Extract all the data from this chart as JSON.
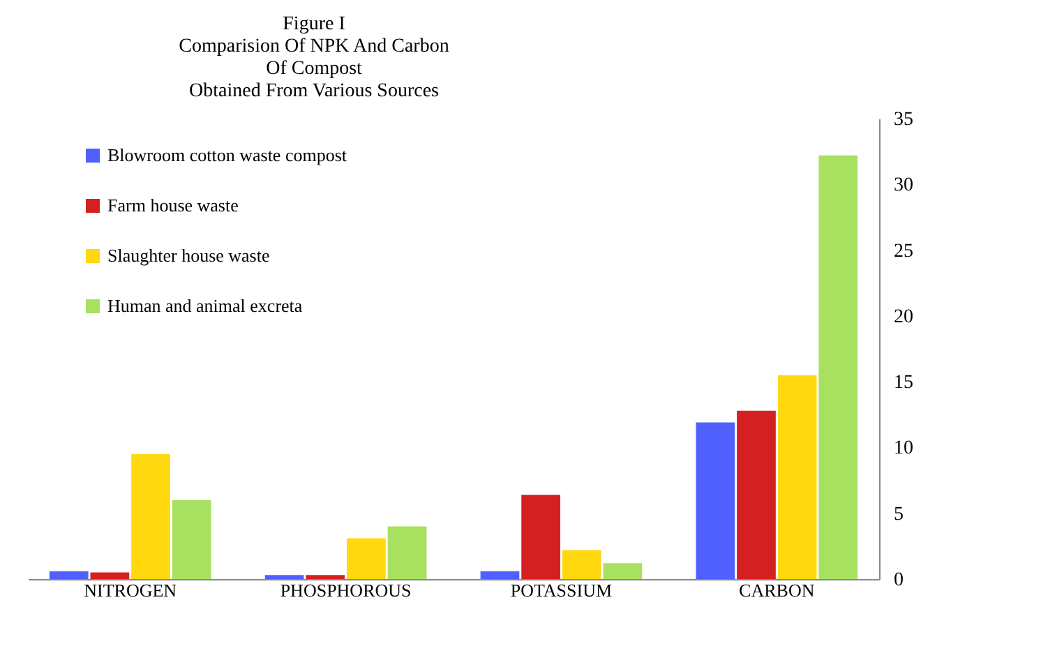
{
  "chart_data": {
    "type": "bar",
    "title": [
      "Figure I",
      "Comparision Of NPK And Carbon",
      "Of Compost",
      "Obtained From Various Sources"
    ],
    "categories": [
      "NITROGEN",
      "PHOSPHOROUS",
      "POTASSIUM",
      "CARBON"
    ],
    "series": [
      {
        "name": "Blowroom cotton waste compost",
        "color": "#5060ff",
        "values": [
          0.6,
          0.3,
          0.6,
          11.9
        ]
      },
      {
        "name": "Farm house waste",
        "color": "#d42020",
        "values": [
          0.5,
          0.3,
          6.4,
          12.8
        ]
      },
      {
        "name": "Slaughter house waste",
        "color": "#ffd810",
        "values": [
          9.5,
          3.1,
          2.2,
          15.5
        ]
      },
      {
        "name": "Human and animal excreta",
        "color": "#a8e060",
        "values": [
          6.0,
          4.0,
          1.2,
          32.2
        ]
      }
    ],
    "ylim": [
      0,
      35
    ],
    "yticks": [
      0,
      5,
      10,
      15,
      20,
      25,
      30,
      35
    ],
    "grid": false,
    "legend": "top left"
  }
}
